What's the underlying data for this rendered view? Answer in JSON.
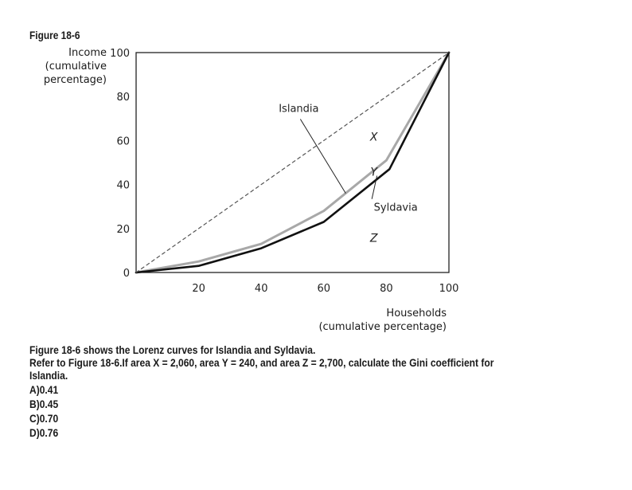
{
  "figure": {
    "label": "Figure 18-6"
  },
  "chart_data": {
    "type": "line",
    "title": "",
    "ylabel_lines": [
      "Income",
      "(cumulative",
      "percentage)"
    ],
    "xlabel_lines": [
      "Households",
      "(cumulative percentage)"
    ],
    "xlim": [
      0,
      100
    ],
    "ylim": [
      0,
      100
    ],
    "x_ticks": [
      0,
      20,
      40,
      60,
      80,
      100
    ],
    "y_ticks": [
      0,
      20,
      40,
      60,
      80,
      100
    ],
    "grid": false,
    "series": [
      {
        "name": "Islandia",
        "style": "gray-solid",
        "color": "#a8a8a8",
        "x": [
          0,
          20,
          40,
          60,
          80,
          100
        ],
        "y": [
          0,
          5,
          13,
          28,
          51,
          100
        ]
      },
      {
        "name": "Syldavia",
        "style": "black-solid",
        "color": "#111111",
        "x": [
          0,
          20,
          40,
          60,
          81,
          100
        ],
        "y": [
          0,
          3,
          11,
          23,
          47,
          100
        ]
      },
      {
        "name": "",
        "style": "dashed",
        "color": "#555555",
        "x": [
          0,
          100
        ],
        "y": [
          0,
          100
        ]
      }
    ],
    "annotations": [
      {
        "text": "Islandia",
        "x": 52,
        "y": 73,
        "pointer_to": [
          67,
          36
        ]
      },
      {
        "text": "Syldavia",
        "x": 83,
        "y": 28,
        "pointer_to": [
          77,
          44
        ]
      }
    ],
    "region_labels": [
      {
        "text": "X",
        "x": 76,
        "y": 60
      },
      {
        "text": "Y",
        "x": 76,
        "y": 44
      },
      {
        "text": "Z",
        "x": 76,
        "y": 14
      }
    ]
  },
  "question": {
    "lines": [
      "Figure 18-6 shows the Lorenz curves for Islandia and Syldavia.",
      "Refer to Figure 18-6.If area X = 2,060, area Y = 240, and area Z = 2,700, calculate the Gini coefficient for",
      "Islandia."
    ],
    "options": [
      "A)0.41",
      "B)0.45",
      "C)0.70",
      "D)0.76"
    ]
  }
}
